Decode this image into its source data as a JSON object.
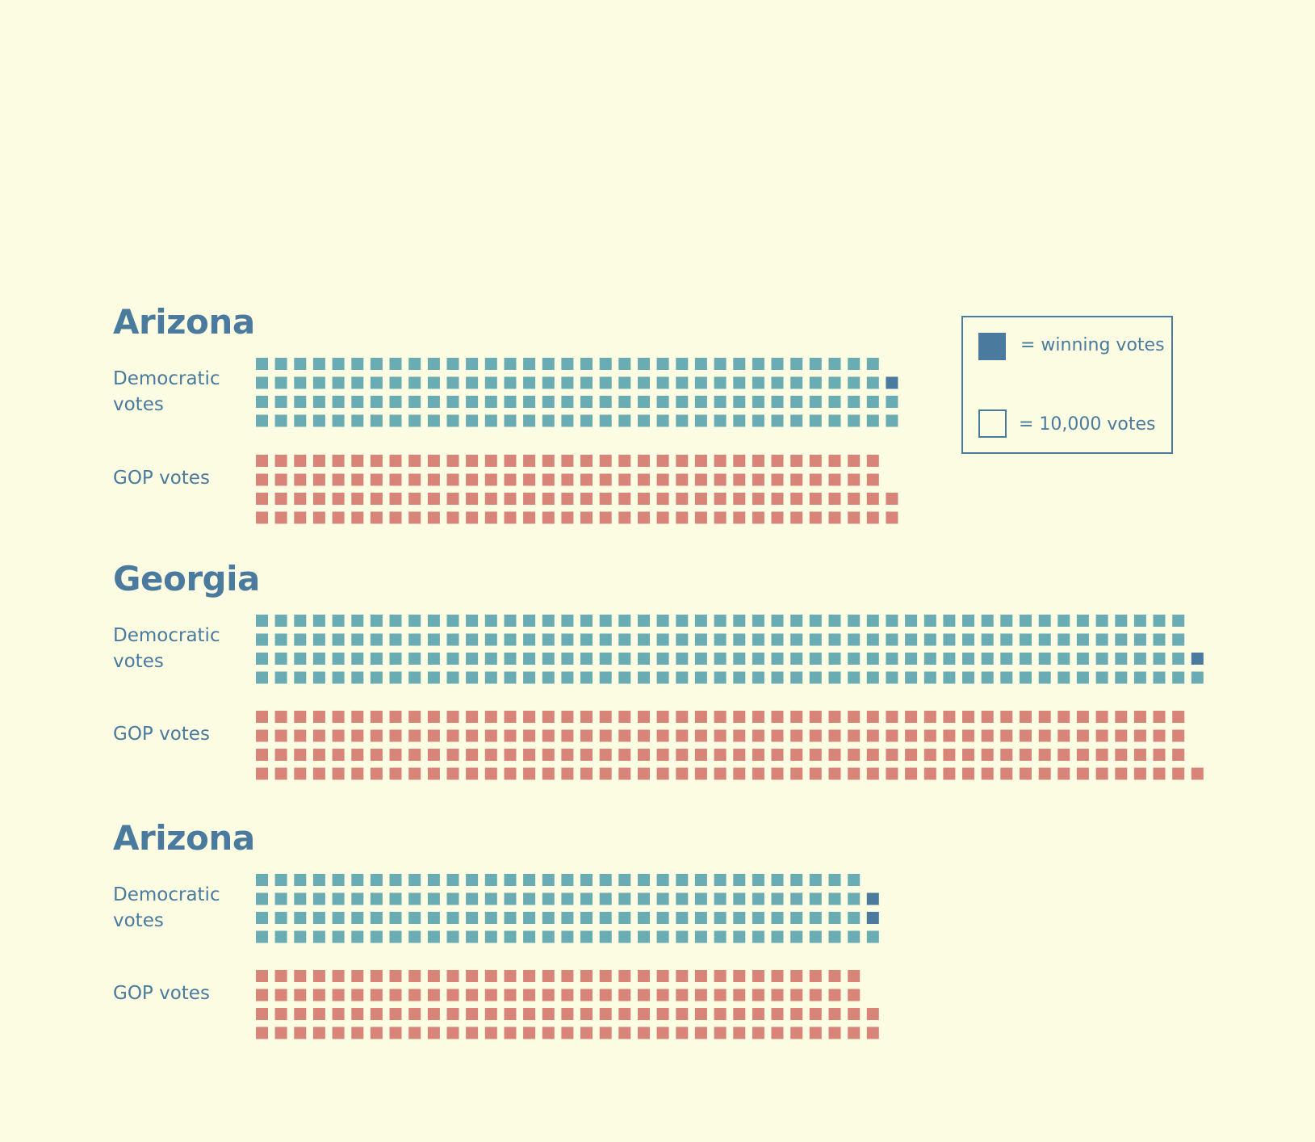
{
  "colors": {
    "background": "#fcfce2",
    "text": "#4a7a9d",
    "democratic": "#6aacb4",
    "gop": "#d98479",
    "winning": "#4a7a9d"
  },
  "legend": {
    "winning_label": "= winning votes",
    "unit_label": "= 10,000 votes"
  },
  "chart_data": {
    "type": "waffle",
    "unit": "10,000 votes",
    "states": [
      {
        "name": "Arizona",
        "democratic": {
          "label": "Democratic votes",
          "squares": 135,
          "winning": 1
        },
        "gop": {
          "label": "GOP votes",
          "squares": 134,
          "winning": 0
        }
      },
      {
        "name": "Georgia",
        "democratic": {
          "label": "Democratic votes",
          "squares": 198,
          "winning": 1
        },
        "gop": {
          "label": "GOP votes",
          "squares": 197,
          "winning": 0
        }
      },
      {
        "name": "Arizona",
        "democratic": {
          "label": "Democratic votes",
          "squares": 131,
          "winning": 2
        },
        "gop": {
          "label": "GOP votes",
          "squares": 130,
          "winning": 0
        }
      }
    ]
  }
}
